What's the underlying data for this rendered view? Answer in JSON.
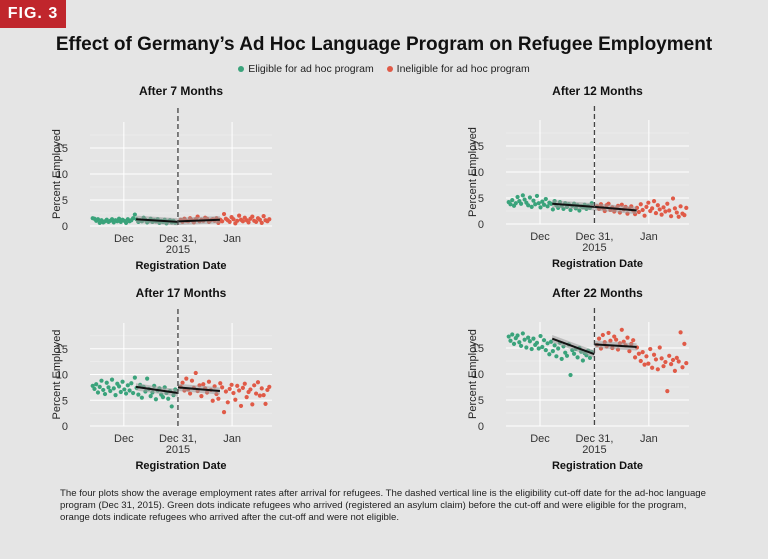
{
  "badge": "FIG. 3",
  "title": "Effect of Germany’s Ad Hoc Language Program on Refugee Employment",
  "legend": [
    {
      "label": "Eligible for ad hoc program",
      "color": "#3aa37b"
    },
    {
      "label": "Ineligible for ad hoc program",
      "color": "#e05a47"
    }
  ],
  "caption": "The four plots show the average employment rates after arrival for refugees. The dashed vertical line is the eligibility cut-off date for the ad-hoc language program (Dec 31, 2015). Green dots indicate refugees who arrived (registered an asylum claim) before the cut-off and were eligible for the program, orange dots indicate refugees who arrived after the cut-off and were not eligible.",
  "colors": {
    "eligible": "#3aa37b",
    "ineligible": "#e05a47",
    "fit": "#111111",
    "ci": "#9a9a9a"
  },
  "chart_data": [
    {
      "type": "scatter",
      "title": "After 7 Months",
      "xlabel": "Registration Date",
      "ylabel": "Percent Employed",
      "x_ticks": [
        {
          "label": "Dec",
          "x": 2015.92
        },
        {
          "label": "Dec 31,\n2015",
          "x": 2016.0
        },
        {
          "label": "Jan",
          "x": 2016.08
        }
      ],
      "xlim": [
        2015.87,
        2016.139
      ],
      "ylim": [
        0,
        20
      ],
      "y_ticks": [
        0,
        5,
        10,
        15
      ],
      "cutoff_x": 2016.0,
      "eligible": [
        1.5,
        1.4,
        1.0,
        1.3,
        0.6,
        1.1,
        0.7,
        0.9,
        1.2,
        0.8,
        1.0,
        1.3,
        0.7,
        1.1,
        0.9,
        1.4,
        0.8,
        1.2,
        1.0,
        0.6,
        1.3,
        0.9,
        1.1,
        1.5,
        2.2,
        1.3,
        0.8,
        1.1,
        0.9,
        1.6,
        1.2,
        0.7,
        1.0,
        1.4,
        0.8,
        1.1,
        0.9,
        1.3,
        0.6,
        1.0,
        0.8,
        1.2,
        0.5,
        0.9,
        1.1,
        0.7,
        1.0,
        0.6
      ],
      "ineligible": [
        1.2,
        0.8,
        1.4,
        1.0,
        0.9,
        1.5,
        1.1,
        0.7,
        1.3,
        1.8,
        0.9,
        1.2,
        1.0,
        1.6,
        1.4,
        0.8,
        1.1,
        1.3,
        1.0,
        1.5,
        0.6,
        1.2,
        0.9,
        2.3,
        1.4,
        1.1,
        0.8,
        1.7,
        1.3,
        0.5,
        1.0,
        2.0,
        1.2,
        0.9,
        1.6,
        1.1,
        0.7,
        1.4,
        1.8,
        1.0,
        0.8,
        1.5,
        1.2,
        0.6,
        1.9,
        1.1,
        0.9,
        1.3
      ],
      "fit_eligible": [
        1.3,
        0.8
      ],
      "fit_ineligible": [
        0.9,
        1.2
      ]
    },
    {
      "type": "scatter",
      "title": "After 12 Months",
      "xlabel": "Registration Date",
      "ylabel": "Percent Employed",
      "x_ticks": [
        {
          "label": "Dec",
          "x": 2015.92
        },
        {
          "label": "Dec 31,\n2015",
          "x": 2016.0
        },
        {
          "label": "Jan",
          "x": 2016.08
        }
      ],
      "xlim": [
        2015.87,
        2016.139
      ],
      "ylim": [
        0,
        20
      ],
      "y_ticks": [
        0,
        5,
        10,
        15
      ],
      "cutoff_x": 2016.0,
      "eligible": [
        4.2,
        3.8,
        4.6,
        3.5,
        4.0,
        5.2,
        4.4,
        3.9,
        5.5,
        4.7,
        4.1,
        3.6,
        5.1,
        3.3,
        4.5,
        3.8,
        5.4,
        4.0,
        3.2,
        4.3,
        3.7,
        4.8,
        3.4,
        4.1,
        3.9,
        2.8,
        4.4,
        3.6,
        3.1,
        4.2,
        3.5,
        2.9,
        4.0,
        3.3,
        3.8,
        2.7,
        3.5,
        3.9,
        3.0,
        3.6,
        2.6,
        3.4,
        3.2,
        3.7,
        2.9,
        3.5,
        3.1,
        4.0
      ],
      "ineligible": [
        3.4,
        2.9,
        3.8,
        3.1,
        2.5,
        3.6,
        3.9,
        2.7,
        3.2,
        2.4,
        3.0,
        3.5,
        2.2,
        3.7,
        2.8,
        3.3,
        2.0,
        2.9,
        3.4,
        2.6,
        1.9,
        3.1,
        2.3,
        3.8,
        2.7,
        1.6,
        3.3,
        4.1,
        2.5,
        3.0,
        4.4,
        2.1,
        3.6,
        2.8,
        1.8,
        3.2,
        2.4,
        3.9,
        2.6,
        1.5,
        4.9,
        3.0,
        2.2,
        1.4,
        3.4,
        2.0,
        1.7,
        3.1
      ],
      "fit_eligible": [
        3.9,
        3.3
      ],
      "fit_ineligible": [
        3.3,
        2.6
      ]
    },
    {
      "type": "scatter",
      "title": "After 17 Months",
      "xlabel": "Registration Date",
      "ylabel": "Percent Employed",
      "x_ticks": [
        {
          "label": "Dec",
          "x": 2015.92
        },
        {
          "label": "Dec 31,\n2015",
          "x": 2016.0
        },
        {
          "label": "Jan",
          "x": 2016.08
        }
      ],
      "xlim": [
        2015.87,
        2016.139
      ],
      "ylim": [
        0,
        20
      ],
      "y_ticks": [
        0,
        5,
        10,
        15
      ],
      "cutoff_x": 2016.0,
      "eligible": [
        7.8,
        7.2,
        8.1,
        6.5,
        7.6,
        8.8,
        7.0,
        6.2,
        8.4,
        7.5,
        6.8,
        9.0,
        7.3,
        6.0,
        8.2,
        7.7,
        6.6,
        8.6,
        7.1,
        6.3,
        7.9,
        6.9,
        8.3,
        6.4,
        9.4,
        7.4,
        6.1,
        8.0,
        5.5,
        7.6,
        6.7,
        9.2,
        7.2,
        5.8,
        6.5,
        7.8,
        5.2,
        6.9,
        7.3,
        6.1,
        5.6,
        7.5,
        6.4,
        5.3,
        6.8,
        3.8,
        6.0,
        7.1
      ],
      "ineligible": [
        7.6,
        8.4,
        6.9,
        9.2,
        7.1,
        6.3,
        8.8,
        7.4,
        10.3,
        6.8,
        7.9,
        5.8,
        8.1,
        7.3,
        6.5,
        8.6,
        7.0,
        4.9,
        7.7,
        6.2,
        5.3,
        8.3,
        7.5,
        2.7,
        6.7,
        4.6,
        7.2,
        8.0,
        6.4,
        5.1,
        7.8,
        6.9,
        3.9,
        7.4,
        8.2,
        5.6,
        6.6,
        7.1,
        4.2,
        7.9,
        6.3,
        8.5,
        5.9,
        7.3,
        6.0,
        4.3,
        7.0,
        7.6
      ],
      "fit_eligible": [
        7.6,
        6.4
      ],
      "fit_ineligible": [
        7.5,
        6.8
      ]
    },
    {
      "type": "scatter",
      "title": "After 22 Months",
      "xlabel": "Registration Date",
      "ylabel": "Percent Employed",
      "x_ticks": [
        {
          "label": "Dec",
          "x": 2015.92
        },
        {
          "label": "Dec 31,\n2015",
          "x": 2016.0
        },
        {
          "label": "Jan",
          "x": 2016.08
        }
      ],
      "xlim": [
        2015.87,
        2016.139
      ],
      "ylim": [
        0,
        20
      ],
      "y_ticks": [
        0,
        5,
        10,
        15
      ],
      "cutoff_x": 2016.0,
      "eligible": [
        17.2,
        16.4,
        17.6,
        15.8,
        16.9,
        17.4,
        16.1,
        15.4,
        17.8,
        16.6,
        15.1,
        17.0,
        16.3,
        14.8,
        16.8,
        15.6,
        16.0,
        14.9,
        17.3,
        15.2,
        16.5,
        14.6,
        15.9,
        13.8,
        16.2,
        14.4,
        15.5,
        13.4,
        14.9,
        16.0,
        12.9,
        15.3,
        14.1,
        13.5,
        15.7,
        9.8,
        14.6,
        13.9,
        14.8,
        13.2,
        15.0,
        14.3,
        12.6,
        14.0,
        13.6,
        14.5,
        13.1,
        14.2
      ],
      "ineligible": [
        15.6,
        16.8,
        14.9,
        17.5,
        16.1,
        15.3,
        17.9,
        16.4,
        15.0,
        17.2,
        16.6,
        14.7,
        15.9,
        18.5,
        16.2,
        15.5,
        17.0,
        14.4,
        15.8,
        16.5,
        13.2,
        15.1,
        13.9,
        12.5,
        14.2,
        11.8,
        13.4,
        12.0,
        14.8,
        11.2,
        13.7,
        12.8,
        10.9,
        15.1,
        13.0,
        11.5,
        12.3,
        6.7,
        13.5,
        11.9,
        12.7,
        10.6,
        13.1,
        12.4,
        18.0,
        11.3,
        15.8,
        12.1
      ],
      "fit_eligible": [
        16.8,
        13.8
      ],
      "fit_ineligible": [
        15.7,
        15.2
      ]
    }
  ]
}
